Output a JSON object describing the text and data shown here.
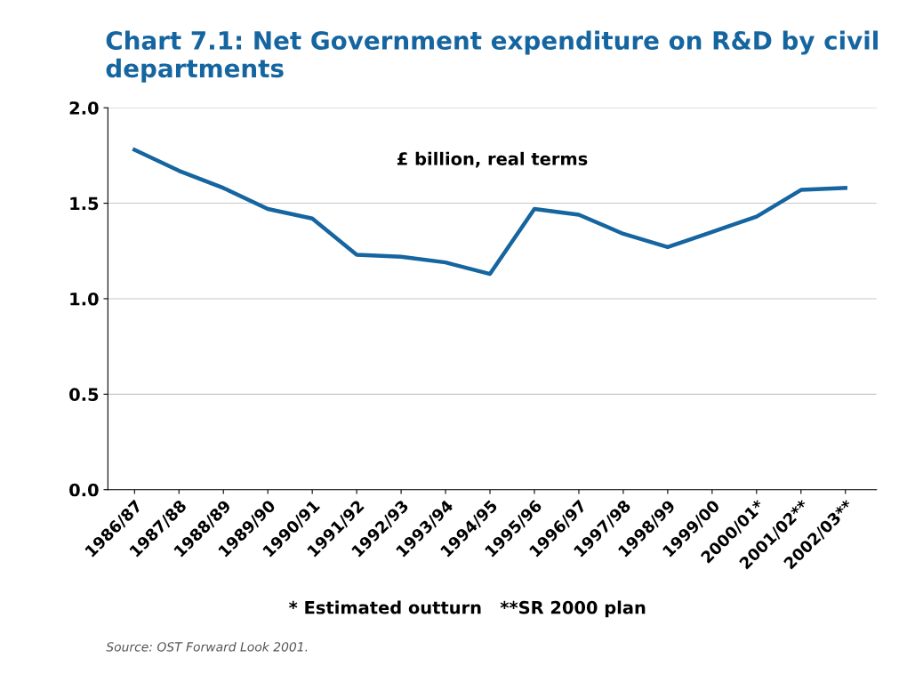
{
  "chart_data": {
    "type": "line",
    "title": "Chart 7.1: Net Government expenditure on R&D by civil departments",
    "categories": [
      "1986/87",
      "1987/88",
      "1988/89",
      "1989/90",
      "1990/91",
      "1991/92",
      "1992/93",
      "1993/94",
      "1994/95",
      "1995/96",
      "1996/97",
      "1997/98",
      "1998/99",
      "1999/00",
      "2000/01*",
      "2001/02**",
      "2002/03**"
    ],
    "series": [
      {
        "color": "#1565a0",
        "values": [
          1.78,
          1.67,
          1.58,
          1.47,
          1.42,
          1.23,
          1.22,
          1.19,
          1.13,
          1.47,
          1.44,
          1.34,
          1.27,
          1.35,
          1.43,
          1.57,
          1.58
        ]
      }
    ],
    "ylim": [
      0,
      2
    ],
    "yticks": [
      {
        "value": 0,
        "label": "0.0"
      },
      {
        "value": 0.5,
        "label": "0.5"
      },
      {
        "value": 1,
        "label": "1.0"
      },
      {
        "value": 1.5,
        "label": "1.5"
      },
      {
        "value": 2,
        "label": "2.0"
      }
    ],
    "grid": "y",
    "marker": "none",
    "line_style": "solid",
    "annotations": [
      "£ billion, real terms",
      "* Estimated outturn   **SR 2000 plan",
      "Source: OST Forward Look 2001."
    ]
  }
}
